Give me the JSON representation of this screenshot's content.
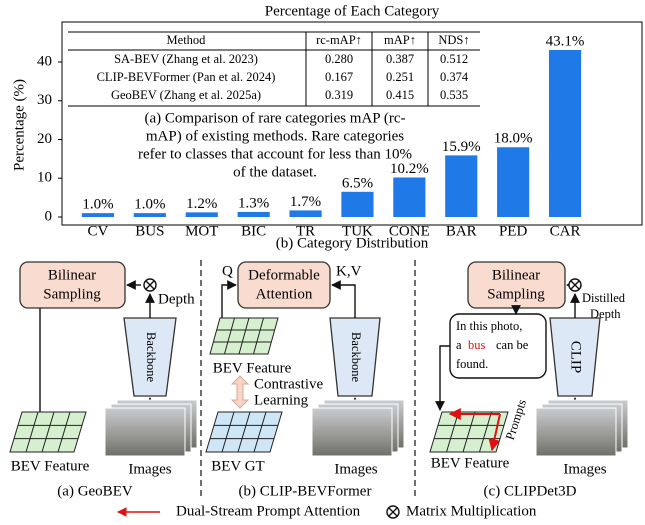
{
  "chart_data": {
    "type": "bar",
    "title": "Percentage of Each Category",
    "caption": "(b) Category Distribution",
    "y_label": "Percentage (%)",
    "categories": [
      "CV",
      "BUS",
      "MOT",
      "BIC",
      "TR",
      "TUK",
      "CONE",
      "BAR",
      "PED",
      "CAR"
    ],
    "values": [
      1.0,
      1.0,
      1.2,
      1.3,
      1.7,
      6.5,
      10.2,
      15.9,
      18.0,
      43.1
    ],
    "value_labels": [
      "1.0%",
      "1.0%",
      "1.2%",
      "1.3%",
      "1.7%",
      "6.5%",
      "10.2%",
      "15.9%",
      "18.0%",
      "43.1%"
    ],
    "color": "#1f7ae8",
    "ylim": [
      0,
      48
    ],
    "yticks": [
      0,
      10,
      20,
      30,
      40
    ]
  },
  "table": {
    "header": [
      "Method",
      "rc-mAP↑",
      "mAP↑",
      "NDS↑"
    ],
    "rows": [
      [
        "SA-BEV (Zhang et al. 2023)",
        "0.280",
        "0.387",
        "0.512"
      ],
      [
        "CLIP-BEVFormer (Pan et al. 2024)",
        "0.167",
        "0.251",
        "0.374"
      ],
      [
        "GeoBEV (Zhang et al. 2025a)",
        "0.319",
        "0.415",
        "0.535"
      ]
    ],
    "caption_lines": [
      "(a) Comparison of rare categories mAP (rc-",
      "mAP) of existing methods. Rare categories",
      "refer to classes that account for less than 10%",
      "of the dataset."
    ]
  },
  "diagram": {
    "panels": [
      {
        "caption": "(a) GeoBEV",
        "sampler": [
          "Bilinear",
          "Sampling"
        ],
        "depth": "Depth",
        "backbone": "Backbone",
        "bev": "BEV Feature",
        "images": "Images"
      },
      {
        "caption": "(b) CLIP-BEVFormer",
        "query": "Q",
        "attention": [
          "Deformable",
          "Attention"
        ],
        "key_value": "K,V",
        "bev": "BEV Feature",
        "contrastive": [
          "Contrastive",
          "Learning"
        ],
        "backbone": "Backbone",
        "bev_gt": "BEV GT",
        "images": "Images"
      },
      {
        "caption": "(c) CLIPDet3D",
        "sampler": [
          "Bilinear",
          "Sampling"
        ],
        "depth": [
          "Distilled",
          "Depth"
        ],
        "prompt_text": [
          "In this photo,",
          "a",
          "bus",
          "can be",
          "found."
        ],
        "encoder": "CLIP",
        "prompts": "Prompts",
        "bev": "BEV Feature",
        "images": "Images"
      }
    ],
    "legend": [
      "Dual-Stream Prompt Attention",
      "Matrix Multiplication"
    ]
  }
}
